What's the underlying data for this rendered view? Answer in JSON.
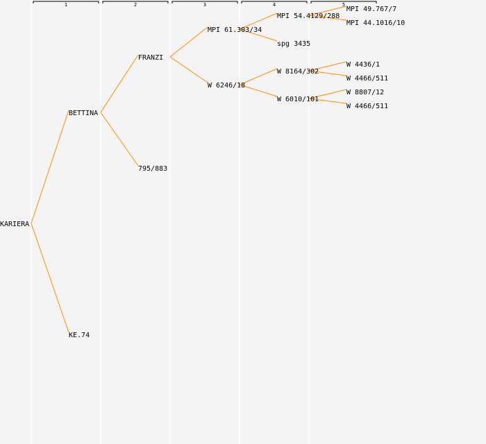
{
  "colors": {
    "background": "#f4f4f4",
    "edge": "#ff8c00",
    "column_separator": "#ffffff",
    "text": "#000000"
  },
  "generations": [
    "1",
    "2",
    "3",
    "4",
    "5"
  ],
  "nodes": [
    {
      "id": "n0",
      "gen": 0,
      "slot": 15,
      "label": "KARIERA"
    },
    {
      "id": "n1",
      "gen": 1,
      "slot": 7,
      "label": "BETTINA"
    },
    {
      "id": "n2",
      "gen": 1,
      "slot": 23,
      "label": "KE.74"
    },
    {
      "id": "n3",
      "gen": 2,
      "slot": 3,
      "label": "FRANZI"
    },
    {
      "id": "n4",
      "gen": 2,
      "slot": 11,
      "label": "795/883"
    },
    {
      "id": "n5",
      "gen": 3,
      "slot": 1,
      "label": "MPI 61.303/34"
    },
    {
      "id": "n6",
      "gen": 3,
      "slot": 5,
      "label": "W 6246/18"
    },
    {
      "id": "n7",
      "gen": 4,
      "slot": 0,
      "label": "MPI 54.4129/288"
    },
    {
      "id": "n8",
      "gen": 4,
      "slot": 2,
      "label": "spg 3435"
    },
    {
      "id": "n9",
      "gen": 4,
      "slot": 4,
      "label": "W 8164/302"
    },
    {
      "id": "n10",
      "gen": 4,
      "slot": 6,
      "label": "W 6010/101"
    },
    {
      "id": "n11",
      "gen": 5,
      "slot": -0.5,
      "label": "MPI 49.767/7"
    },
    {
      "id": "n12",
      "gen": 5,
      "slot": 0.5,
      "label": "MPI 44.1016/10"
    },
    {
      "id": "n13",
      "gen": 5,
      "slot": 3.5,
      "label": "W 4436/1"
    },
    {
      "id": "n14",
      "gen": 5,
      "slot": 4.5,
      "label": "W 4466/511"
    },
    {
      "id": "n15",
      "gen": 5,
      "slot": 5.5,
      "label": "W 8807/12"
    },
    {
      "id": "n16",
      "gen": 5,
      "slot": 6.5,
      "label": "W 4466/511"
    }
  ],
  "edges": [
    [
      "n0",
      "n1"
    ],
    [
      "n0",
      "n2"
    ],
    [
      "n1",
      "n3"
    ],
    [
      "n1",
      "n4"
    ],
    [
      "n3",
      "n5"
    ],
    [
      "n3",
      "n6"
    ],
    [
      "n5",
      "n7"
    ],
    [
      "n5",
      "n8"
    ],
    [
      "n6",
      "n9"
    ],
    [
      "n6",
      "n10"
    ],
    [
      "n7",
      "n11"
    ],
    [
      "n7",
      "n12"
    ],
    [
      "n9",
      "n13"
    ],
    [
      "n9",
      "n14"
    ],
    [
      "n10",
      "n15"
    ],
    [
      "n10",
      "n16"
    ]
  ]
}
